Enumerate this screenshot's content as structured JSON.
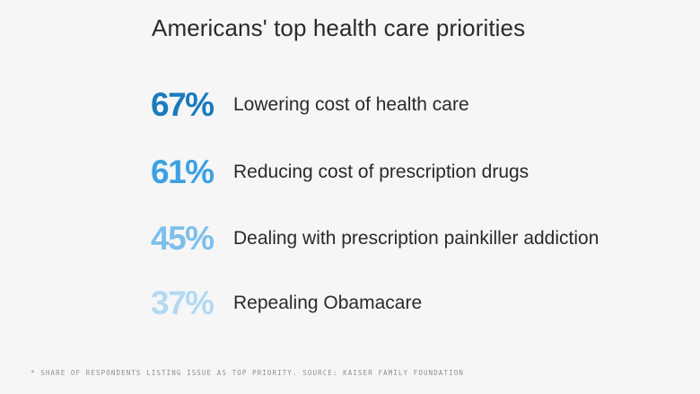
{
  "chart_data": {
    "type": "table",
    "title": "Americans' top health care priorities",
    "categories": [
      "Lowering cost of health care",
      "Reducing cost of prescription drugs",
      "Dealing with prescription painkiller addiction",
      "Repealing Obamacare"
    ],
    "values": [
      67,
      61,
      45,
      37
    ],
    "value_labels": [
      "67%",
      "61%",
      "45%",
      "37%"
    ],
    "colors": [
      "#1a7bbd",
      "#3ba1e2",
      "#7dbfec",
      "#b3d9f3"
    ],
    "footnote": "* Share of respondents listing issue as top priority. Source: Kaiser Family Foundation"
  }
}
